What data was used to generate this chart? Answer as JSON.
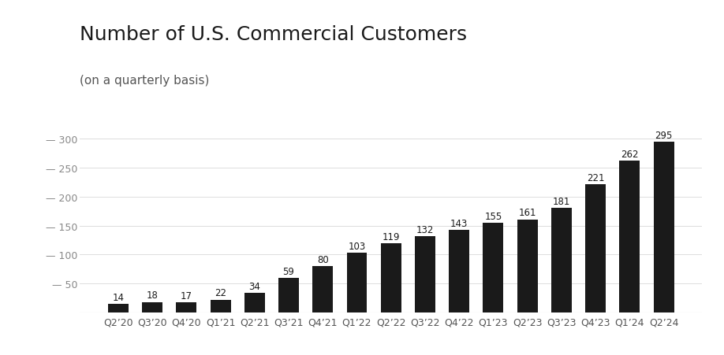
{
  "title": "Number of U.S. Commercial Customers",
  "subtitle": "(on a quarterly basis)",
  "categories": [
    "Q2’20",
    "Q3’20",
    "Q4’20",
    "Q1’21",
    "Q2’21",
    "Q3’21",
    "Q4’21",
    "Q1’22",
    "Q2’22",
    "Q3’22",
    "Q4’22",
    "Q1’23",
    "Q2’23",
    "Q3’23",
    "Q4’23",
    "Q1’24",
    "Q2’24"
  ],
  "values": [
    14,
    18,
    17,
    22,
    34,
    59,
    80,
    103,
    119,
    132,
    143,
    155,
    161,
    181,
    221,
    262,
    295
  ],
  "bar_color": "#1a1a1a",
  "background_color": "#ffffff",
  "yticks": [
    50,
    100,
    150,
    200,
    250,
    300
  ],
  "ylim": [
    0,
    320
  ],
  "title_fontsize": 18,
  "subtitle_fontsize": 11,
  "tick_fontsize": 9,
  "bar_label_fontsize": 8.5,
  "ylabel_color": "#888888",
  "grid_color": "#dddddd"
}
